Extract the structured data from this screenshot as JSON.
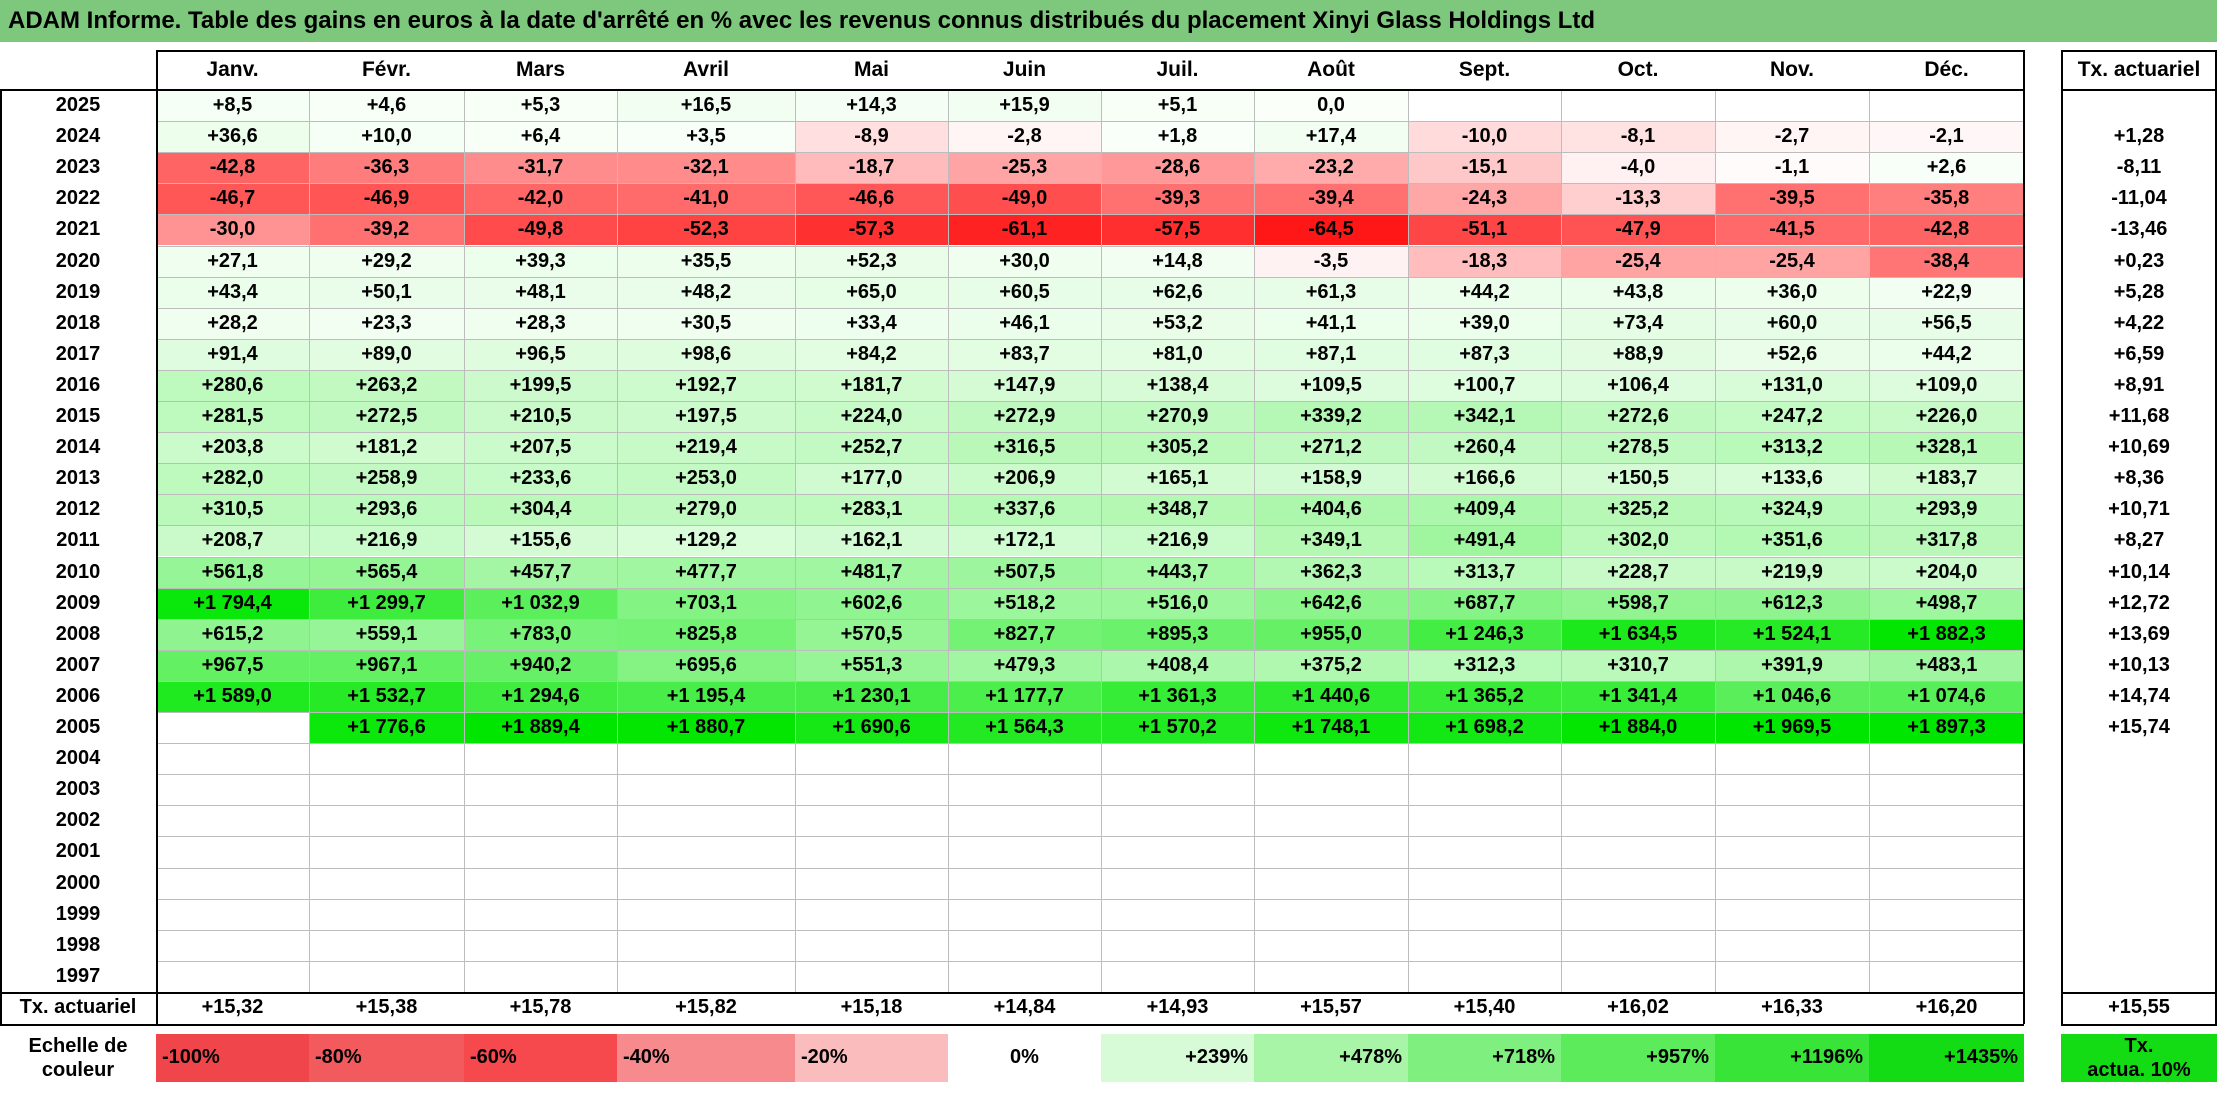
{
  "title": "ADAM Informe. Table des gains en euros à la date d'arrêté en % avec les revenus connus distribués du placement Xinyi Glass Holdings Ltd",
  "months": [
    "Janv.",
    "Févr.",
    "Mars",
    "Avril",
    "Mai",
    "Juin",
    "Juil.",
    "Août",
    "Sept.",
    "Oct.",
    "Nov.",
    "Déc."
  ],
  "tx_header": "Tx. actuariel",
  "rows": [
    {
      "year": "2025",
      "values": [
        "+8,5",
        "+4,6",
        "+5,3",
        "+16,5",
        "+14,3",
        "+15,9",
        "+5,1",
        "0,0",
        "",
        "",
        "",
        ""
      ],
      "tx": ""
    },
    {
      "year": "2024",
      "values": [
        "+36,6",
        "+10,0",
        "+6,4",
        "+3,5",
        "-8,9",
        "-2,8",
        "+1,8",
        "+17,4",
        "-10,0",
        "-8,1",
        "-2,7",
        "-2,1"
      ],
      "tx": "+1,28"
    },
    {
      "year": "2023",
      "values": [
        "-42,8",
        "-36,3",
        "-31,7",
        "-32,1",
        "-18,7",
        "-25,3",
        "-28,6",
        "-23,2",
        "-15,1",
        "-4,0",
        "-1,1",
        "+2,6"
      ],
      "tx": "-8,11"
    },
    {
      "year": "2022",
      "values": [
        "-46,7",
        "-46,9",
        "-42,0",
        "-41,0",
        "-46,6",
        "-49,0",
        "-39,3",
        "-39,4",
        "-24,3",
        "-13,3",
        "-39,5",
        "-35,8"
      ],
      "tx": "-11,04"
    },
    {
      "year": "2021",
      "values": [
        "-30,0",
        "-39,2",
        "-49,8",
        "-52,3",
        "-57,3",
        "-61,1",
        "-57,5",
        "-64,5",
        "-51,1",
        "-47,9",
        "-41,5",
        "-42,8"
      ],
      "tx": "-13,46"
    },
    {
      "year": "2020",
      "values": [
        "+27,1",
        "+29,2",
        "+39,3",
        "+35,5",
        "+52,3",
        "+30,0",
        "+14,8",
        "-3,5",
        "-18,3",
        "-25,4",
        "-25,4",
        "-38,4"
      ],
      "tx": "+0,23"
    },
    {
      "year": "2019",
      "values": [
        "+43,4",
        "+50,1",
        "+48,1",
        "+48,2",
        "+65,0",
        "+60,5",
        "+62,6",
        "+61,3",
        "+44,2",
        "+43,8",
        "+36,0",
        "+22,9"
      ],
      "tx": "+5,28"
    },
    {
      "year": "2018",
      "values": [
        "+28,2",
        "+23,3",
        "+28,3",
        "+30,5",
        "+33,4",
        "+46,1",
        "+53,2",
        "+41,1",
        "+39,0",
        "+73,4",
        "+60,0",
        "+56,5"
      ],
      "tx": "+4,22"
    },
    {
      "year": "2017",
      "values": [
        "+91,4",
        "+89,0",
        "+96,5",
        "+98,6",
        "+84,2",
        "+83,7",
        "+81,0",
        "+87,1",
        "+87,3",
        "+88,9",
        "+52,6",
        "+44,2"
      ],
      "tx": "+6,59"
    },
    {
      "year": "2016",
      "values": [
        "+280,6",
        "+263,2",
        "+199,5",
        "+192,7",
        "+181,7",
        "+147,9",
        "+138,4",
        "+109,5",
        "+100,7",
        "+106,4",
        "+131,0",
        "+109,0"
      ],
      "tx": "+8,91"
    },
    {
      "year": "2015",
      "values": [
        "+281,5",
        "+272,5",
        "+210,5",
        "+197,5",
        "+224,0",
        "+272,9",
        "+270,9",
        "+339,2",
        "+342,1",
        "+272,6",
        "+247,2",
        "+226,0"
      ],
      "tx": "+11,68"
    },
    {
      "year": "2014",
      "values": [
        "+203,8",
        "+181,2",
        "+207,5",
        "+219,4",
        "+252,7",
        "+316,5",
        "+305,2",
        "+271,2",
        "+260,4",
        "+278,5",
        "+313,2",
        "+328,1"
      ],
      "tx": "+10,69"
    },
    {
      "year": "2013",
      "values": [
        "+282,0",
        "+258,9",
        "+233,6",
        "+253,0",
        "+177,0",
        "+206,9",
        "+165,1",
        "+158,9",
        "+166,6",
        "+150,5",
        "+133,6",
        "+183,7"
      ],
      "tx": "+8,36"
    },
    {
      "year": "2012",
      "values": [
        "+310,5",
        "+293,6",
        "+304,4",
        "+279,0",
        "+283,1",
        "+337,6",
        "+348,7",
        "+404,6",
        "+409,4",
        "+325,2",
        "+324,9",
        "+293,9"
      ],
      "tx": "+10,71"
    },
    {
      "year": "2011",
      "values": [
        "+208,7",
        "+216,9",
        "+155,6",
        "+129,2",
        "+162,1",
        "+172,1",
        "+216,9",
        "+349,1",
        "+491,4",
        "+302,0",
        "+351,6",
        "+317,8"
      ],
      "tx": "+8,27"
    },
    {
      "year": "2010",
      "values": [
        "+561,8",
        "+565,4",
        "+457,7",
        "+477,7",
        "+481,7",
        "+507,5",
        "+443,7",
        "+362,3",
        "+313,7",
        "+228,7",
        "+219,9",
        "+204,0"
      ],
      "tx": "+10,14"
    },
    {
      "year": "2009",
      "values": [
        "+1 794,4",
        "+1 299,7",
        "+1 032,9",
        "+703,1",
        "+602,6",
        "+518,2",
        "+516,0",
        "+642,6",
        "+687,7",
        "+598,7",
        "+612,3",
        "+498,7"
      ],
      "tx": "+12,72"
    },
    {
      "year": "2008",
      "values": [
        "+615,2",
        "+559,1",
        "+783,0",
        "+825,8",
        "+570,5",
        "+827,7",
        "+895,3",
        "+955,0",
        "+1 246,3",
        "+1 634,5",
        "+1 524,1",
        "+1 882,3"
      ],
      "tx": "+13,69"
    },
    {
      "year": "2007",
      "values": [
        "+967,5",
        "+967,1",
        "+940,2",
        "+695,6",
        "+551,3",
        "+479,3",
        "+408,4",
        "+375,2",
        "+312,3",
        "+310,7",
        "+391,9",
        "+483,1"
      ],
      "tx": "+10,13"
    },
    {
      "year": "2006",
      "values": [
        "+1 589,0",
        "+1 532,7",
        "+1 294,6",
        "+1 195,4",
        "+1 230,1",
        "+1 177,7",
        "+1 361,3",
        "+1 440,6",
        "+1 365,2",
        "+1 341,4",
        "+1 046,6",
        "+1 074,6"
      ],
      "tx": "+14,74"
    },
    {
      "year": "2005",
      "values": [
        "",
        "+1 776,6",
        "+1 889,4",
        "+1 880,7",
        "+1 690,6",
        "+1 564,3",
        "+1 570,2",
        "+1 748,1",
        "+1 698,2",
        "+1 884,0",
        "+1 969,5",
        "+1 897,3"
      ],
      "tx": "+15,74"
    },
    {
      "year": "2004",
      "values": [
        "",
        "",
        "",
        "",
        "",
        "",
        "",
        "",
        "",
        "",
        "",
        ""
      ],
      "tx": ""
    },
    {
      "year": "2003",
      "values": [
        "",
        "",
        "",
        "",
        "",
        "",
        "",
        "",
        "",
        "",
        "",
        ""
      ],
      "tx": ""
    },
    {
      "year": "2002",
      "values": [
        "",
        "",
        "",
        "",
        "",
        "",
        "",
        "",
        "",
        "",
        "",
        ""
      ],
      "tx": ""
    },
    {
      "year": "2001",
      "values": [
        "",
        "",
        "",
        "",
        "",
        "",
        "",
        "",
        "",
        "",
        "",
        ""
      ],
      "tx": ""
    },
    {
      "year": "2000",
      "values": [
        "",
        "",
        "",
        "",
        "",
        "",
        "",
        "",
        "",
        "",
        "",
        ""
      ],
      "tx": ""
    },
    {
      "year": "1999",
      "values": [
        "",
        "",
        "",
        "",
        "",
        "",
        "",
        "",
        "",
        "",
        "",
        ""
      ],
      "tx": ""
    },
    {
      "year": "1998",
      "values": [
        "",
        "",
        "",
        "",
        "",
        "",
        "",
        "",
        "",
        "",
        "",
        ""
      ],
      "tx": ""
    },
    {
      "year": "1997",
      "values": [
        "",
        "",
        "",
        "",
        "",
        "",
        "",
        "",
        "",
        "",
        "",
        ""
      ],
      "tx": ""
    }
  ],
  "footer": {
    "label": "Tx. actuariel",
    "values": [
      "+15,32",
      "+15,38",
      "+15,78",
      "+15,82",
      "+15,18",
      "+14,84",
      "+14,93",
      "+15,57",
      "+15,40",
      "+16,02",
      "+16,33",
      "+16,20"
    ],
    "tx": "+15,55"
  },
  "scale": {
    "label_line1": "Echelle de",
    "label_line2": "couleur",
    "items": [
      {
        "text": "-100%",
        "color": "#f0464b"
      },
      {
        "text": "-80%",
        "color": "#f25a5e"
      },
      {
        "text": "-60%",
        "color": "#f5494e"
      },
      {
        "text": "-40%",
        "color": "#f78a8c"
      },
      {
        "text": "-20%",
        "color": "#fbbcbe"
      },
      {
        "text": "0%",
        "color": "#ffffff"
      },
      {
        "text": "+239%",
        "color": "#d6fbd6"
      },
      {
        "text": "+478%",
        "color": "#a8f5a8"
      },
      {
        "text": "+718%",
        "color": "#7ff07f"
      },
      {
        "text": "+957%",
        "color": "#5beb5b"
      },
      {
        "text": "+1196%",
        "color": "#37e437"
      },
      {
        "text": "+1435%",
        "color": "#14dc14"
      }
    ],
    "tx_line1": "Tx.",
    "tx_line2": "actua. 10%",
    "tx_color": "#14dc14"
  },
  "colors": {
    "title_bg": "#7dc87d",
    "negative_max": "#ff0000",
    "positive_max": "#00e600"
  }
}
